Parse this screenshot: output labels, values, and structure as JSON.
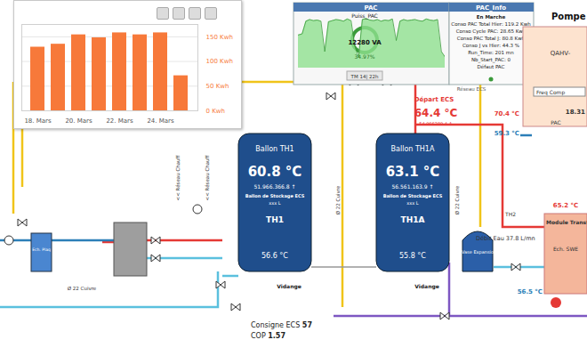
{
  "chart_data": {
    "type": "bar",
    "categories": [
      "18. Mars",
      null,
      "20. Mars",
      null,
      "22. Mars",
      null,
      "24. Mars",
      null
    ],
    "values": [
      129,
      135,
      154,
      148,
      158,
      154,
      158,
      71
    ],
    "color": "#f7793a",
    "ylim": [
      0,
      175
    ],
    "yticks": [
      {
        "value": 0,
        "label": "0 Kwh"
      },
      {
        "value": 50,
        "label": "50 Kwh"
      },
      {
        "value": 100,
        "label": "100 Kwh"
      },
      {
        "value": 150,
        "label": "150 Kwh"
      }
    ],
    "grid": true
  },
  "pac_panel": {
    "title": "PAC",
    "gauge_label": "Puiss_PAC",
    "gauge_value": "12280 VA",
    "gauge_percent": "34.97%",
    "footer": "TM 14| 22h",
    "trace": {
      "type": "area",
      "values": [
        60,
        62,
        85,
        88,
        86,
        87,
        85,
        30,
        84,
        86,
        88,
        87,
        85,
        89,
        86,
        40,
        20,
        88,
        90,
        87,
        86,
        88,
        85,
        87,
        86,
        89,
        50,
        85,
        88,
        86,
        87,
        88,
        86,
        85,
        89,
        87,
        86,
        88,
        30,
        20
      ],
      "ylim": [
        0,
        100
      ],
      "tick_labels": false,
      "color": "#8fe08f"
    }
  },
  "pac_info": {
    "title": "PAC_Info",
    "lines": [
      "En Marche",
      "Conso PAC Total Hier: 119.2 Kwh",
      "Conso Cycle PAC: 28.65 Kwh",
      "Conso PAC Total J: 80.8 Kwh",
      "Conso J vs Hier: 44.3 %",
      "Run_Time: 201 mn",
      "Nb_Start_PAC: 0",
      "Défaut PAC"
    ]
  },
  "pump": {
    "title": "Pompe A",
    "model": "QAHV-",
    "freq": "Freq Comp",
    "unit": "PAC",
    "value": "18.31",
    "supply_temp": "70.4 °C",
    "return_temp": "59.3 °C"
  },
  "ecs": {
    "depart": "Départ ECS",
    "temp": "64.4 °C",
    "minmax": "54.966289.4 ↑",
    "network": "Réseau ECS"
  },
  "tanks": [
    {
      "title": "Ballon TH1",
      "temp": "60.8 °C",
      "minmax": "51.966.366.8 ↑",
      "desc": "Ballon de Stockage ECS",
      "volume": "xxx L",
      "id": "TH1",
      "bottom_temp": "56.6 °C",
      "drain": "Vidange"
    },
    {
      "title": "Ballon TH1A",
      "temp": "63.1 °C",
      "minmax": "56.561.163.9 ↑",
      "desc": "Ballon de Stockage ECS",
      "volume": "xxx L",
      "id": "TH1A",
      "bottom_temp": "55.8 °C",
      "drain": "Vidange"
    }
  ],
  "transfer": {
    "vase": "Vase Expansio",
    "sensor": "TH2",
    "hot_temp": "65.2 °C",
    "flow": "Débit Eau 37.8 L/mn",
    "return_temp": "56.5 °C",
    "module": "Module Transfe",
    "exchanger": "Ech. SWE"
  },
  "heating": {
    "exchanger": "Ech. Plaq",
    "network_labels": [
      "<< Réseau Chauff",
      "<< Réseau Chauff"
    ],
    "pipe_labels": [
      "Ø 22 Cuivre",
      "Ø 22 Cuivre",
      "Ø 22 Cuivre"
    ]
  },
  "footer": {
    "setpoint_label": "Consigne ECS",
    "setpoint": "57",
    "cop_label": "COP",
    "cop": "1.57"
  }
}
